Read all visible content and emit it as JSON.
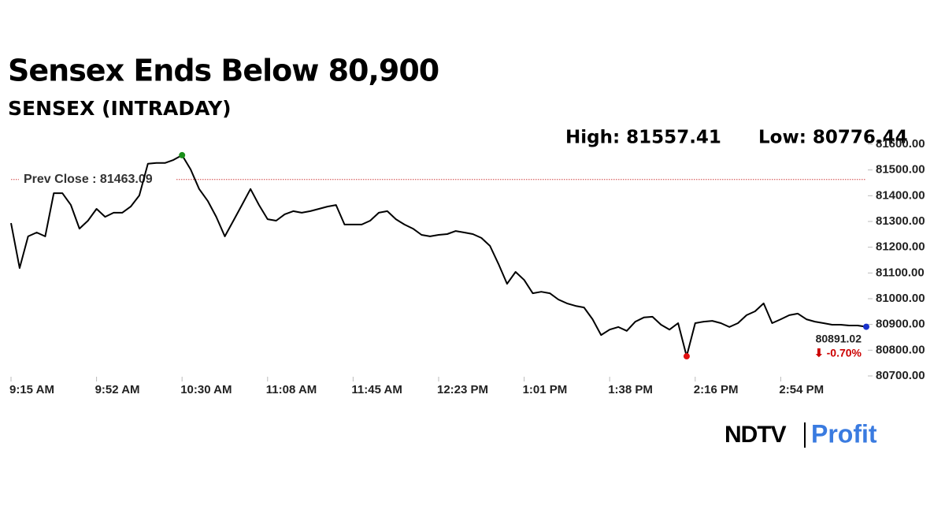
{
  "chart_data": {
    "type": "line",
    "title": "Sensex Ends Below 80,900",
    "subtitle": "SENSEX (INTRADAY)",
    "high_label": "High: 81557.41",
    "low_label": "Low: 80776.44",
    "prev_close": {
      "value": 81463.09,
      "label": "Prev Close : 81463.09"
    },
    "last_label": "80891.02",
    "change_label": "⬇ -0.70%",
    "logo": [
      "NDTV",
      "Profit"
    ],
    "categories": [
      "9:15 AM",
      null,
      null,
      null,
      null,
      null,
      null,
      null,
      null,
      null,
      "9:52 AM",
      null,
      null,
      null,
      null,
      null,
      null,
      null,
      null,
      null,
      "10:30 AM",
      null,
      null,
      null,
      null,
      null,
      null,
      null,
      null,
      null,
      "11:08 AM",
      null,
      null,
      null,
      null,
      null,
      null,
      null,
      null,
      null,
      "11:45 AM",
      null,
      null,
      null,
      null,
      null,
      null,
      null,
      null,
      null,
      "12:23 PM",
      null,
      null,
      null,
      null,
      null,
      null,
      null,
      null,
      null,
      "1:01 PM",
      null,
      null,
      null,
      null,
      null,
      null,
      null,
      null,
      null,
      "1:38 PM",
      null,
      null,
      null,
      null,
      null,
      null,
      null,
      null,
      null,
      "2:16 PM",
      null,
      null,
      null,
      null,
      null,
      null,
      null,
      null,
      null,
      "2:54 PM",
      null,
      null,
      null,
      null,
      null,
      null,
      null,
      null,
      null,
      null
    ],
    "series": [
      {
        "name": "SENSEX",
        "color": "#000000",
        "values": [
          81294,
          81119,
          81242,
          81257,
          81242,
          81410,
          81410,
          81364,
          81272,
          81303,
          81349,
          81318,
          81334,
          81334,
          81358,
          81401,
          81524,
          81527,
          81527,
          81539,
          81557.41,
          81502,
          81426,
          81380,
          81318,
          81242,
          81303,
          81364,
          81426,
          81364,
          81309,
          81303,
          81328,
          81340,
          81334,
          81340,
          81349,
          81358,
          81364,
          81288,
          81288,
          81288,
          81303,
          81334,
          81340,
          81309,
          81288,
          81272,
          81248,
          81242,
          81248,
          81251,
          81263,
          81257,
          81251,
          81236,
          81205,
          81135,
          81058,
          81104,
          81073,
          81021,
          81027,
          81021,
          80997,
          80982,
          80972,
          80966,
          80920,
          80859,
          80880,
          80890,
          80875,
          80911,
          80927,
          80930,
          80899,
          80880,
          80905,
          80776.44,
          80905,
          80911,
          80914,
          80905,
          80890,
          80905,
          80936,
          80951,
          80982,
          80905,
          80920,
          80936,
          80942,
          80920,
          80911,
          80905,
          80899,
          80899,
          80896,
          80896,
          80891.02
        ]
      }
    ],
    "high_index": 20,
    "low_index": 79,
    "high_color": "#1a8f1a",
    "low_color": "#e01010",
    "last_color": "#1a33cc",
    "prev_close_color": "#d04040",
    "change_color": "#cc0000",
    "ylim": [
      80700,
      81600
    ],
    "yticks": [
      {
        "value": 81600,
        "label": "81600.00"
      },
      {
        "value": 81500,
        "label": "81500.00"
      },
      {
        "value": 81400,
        "label": "81400.00"
      },
      {
        "value": 81300,
        "label": "81300.00"
      },
      {
        "value": 81200,
        "label": "81200.00"
      },
      {
        "value": 81100,
        "label": "81100.00"
      },
      {
        "value": 81000,
        "label": "81000.00"
      },
      {
        "value": 80900,
        "label": "80900.00"
      },
      {
        "value": 80800,
        "label": "80800.00"
      },
      {
        "value": 80700,
        "label": "80700.00"
      }
    ],
    "grid": false
  }
}
